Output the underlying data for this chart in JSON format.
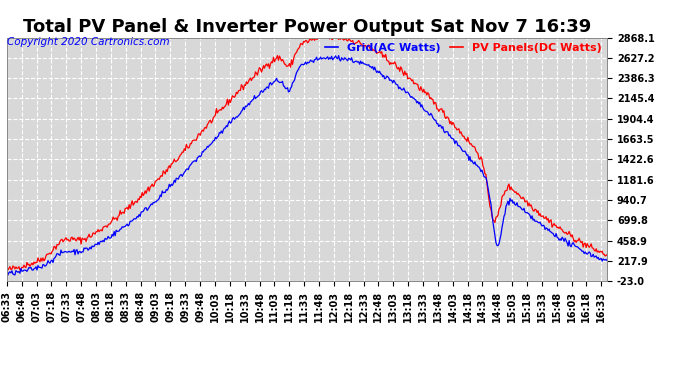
{
  "title": "Total PV Panel & Inverter Power Output Sat Nov 7 16:39",
  "copyright": "Copyright 2020 Cartronics.com",
  "legend_ac": "Grid(AC Watts)",
  "legend_dc": "PV Panels(DC Watts)",
  "color_ac": "blue",
  "color_dc": "red",
  "bg_color": "#ffffff",
  "plot_bg_color": "#d8d8d8",
  "grid_color": "#ffffff",
  "yticks": [
    -23.0,
    217.9,
    458.9,
    699.8,
    940.7,
    1181.6,
    1422.6,
    1663.5,
    1904.4,
    2145.4,
    2386.3,
    2627.2,
    2868.1
  ],
  "ymin": -23.0,
  "ymax": 2868.1,
  "title_fontsize": 13,
  "axis_fontsize": 7,
  "copyright_fontsize": 7.5
}
